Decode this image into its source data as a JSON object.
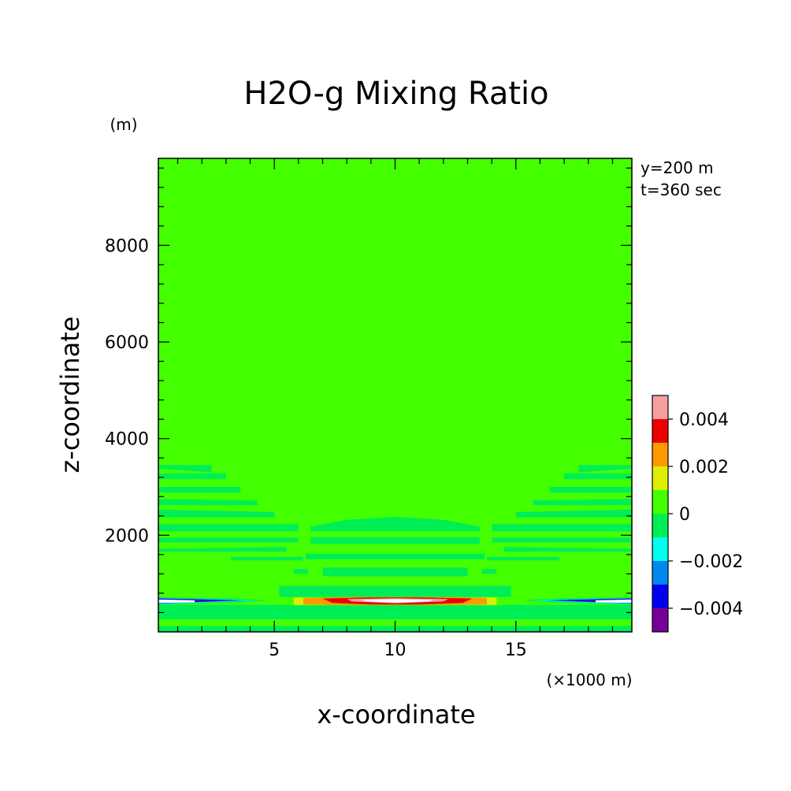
{
  "chart_data": {
    "type": "heatmap",
    "title": "H2O-g Mixing Ratio",
    "xlabel": "x-coordinate",
    "ylabel": "z-coordinate",
    "x_unit": "(×1000 m)",
    "y_unit": "(m)",
    "annotations": [
      "y=200 m",
      "t=360 sec"
    ],
    "xlim": [
      0.2,
      19.8
    ],
    "ylim": [
      0,
      9800
    ],
    "x_ticks": [
      5,
      10,
      15
    ],
    "x_tick_labels": [
      "5",
      "10",
      "15"
    ],
    "y_ticks": [
      2000,
      4000,
      6000,
      8000
    ],
    "y_tick_labels": [
      "2000",
      "4000",
      "6000",
      "8000"
    ],
    "background_level": 0,
    "colorbar": {
      "levels": [
        {
          "lower": 0.004,
          "color": "#f4a0a0"
        },
        {
          "lower": 0.003,
          "color": "#ee0000"
        },
        {
          "lower": 0.002,
          "color": "#ff9900"
        },
        {
          "lower": 0.001,
          "color": "#ddee00"
        },
        {
          "lower": 0.0,
          "color": "#44ff00"
        },
        {
          "lower": -0.001,
          "color": "#00ee55"
        },
        {
          "lower": -0.002,
          "color": "#00ffee"
        },
        {
          "lower": -0.003,
          "color": "#0088ee"
        },
        {
          "lower": -0.004,
          "color": "#0000ee"
        },
        {
          "lower": -0.005,
          "color": "#770099"
        }
      ],
      "labels": [
        {
          "value": 0.004,
          "text": "0.004"
        },
        {
          "value": 0.002,
          "text": "0.002"
        },
        {
          "value": 0,
          "text": "0"
        },
        {
          "value": -0.002,
          "text": "−0.002"
        },
        {
          "value": -0.004,
          "text": "−0.004"
        }
      ]
    },
    "regions": [
      {
        "level": -0.001,
        "desc": "left stripe 1",
        "points": [
          [
            0.2,
            3450
          ],
          [
            0.2,
            3380
          ],
          [
            2.4,
            3300
          ],
          [
            2.4,
            3450
          ]
        ]
      },
      {
        "level": -0.001,
        "desc": "left band 1",
        "points": [
          [
            0.2,
            3280
          ],
          [
            3.0,
            3280
          ],
          [
            3.0,
            3160
          ],
          [
            0.2,
            3160
          ]
        ]
      },
      {
        "level": -0.001,
        "desc": "left band 2",
        "points": [
          [
            0.2,
            3000
          ],
          [
            3.6,
            3000
          ],
          [
            3.6,
            2880
          ],
          [
            0.2,
            2880
          ]
        ]
      },
      {
        "level": -0.001,
        "desc": "left band 3",
        "points": [
          [
            0.2,
            2750
          ],
          [
            4.3,
            2720
          ],
          [
            4.3,
            2620
          ],
          [
            0.2,
            2620
          ]
        ]
      },
      {
        "level": -0.001,
        "desc": "left band 4",
        "points": [
          [
            0.2,
            2530
          ],
          [
            5.0,
            2480
          ],
          [
            5.0,
            2370
          ],
          [
            0.2,
            2370
          ]
        ]
      },
      {
        "level": -0.001,
        "desc": "left band 5",
        "points": [
          [
            0.2,
            2230
          ],
          [
            6.0,
            2230
          ],
          [
            6.0,
            2080
          ],
          [
            0.2,
            2080
          ]
        ]
      },
      {
        "level": -0.001,
        "desc": "left band 6",
        "points": [
          [
            0.2,
            1950
          ],
          [
            6.0,
            1950
          ],
          [
            6.0,
            1850
          ],
          [
            0.2,
            1850
          ]
        ]
      },
      {
        "level": -0.001,
        "desc": "left band 7",
        "points": [
          [
            0.2,
            1720
          ],
          [
            5.5,
            1760
          ],
          [
            5.5,
            1660
          ],
          [
            0.2,
            1660
          ]
        ]
      },
      {
        "level": -0.001,
        "desc": "left band 8",
        "points": [
          [
            3.2,
            1550
          ],
          [
            6.2,
            1550
          ],
          [
            6.2,
            1480
          ],
          [
            3.2,
            1480
          ]
        ]
      },
      {
        "level": -0.001,
        "desc": "left wedge",
        "points": [
          [
            5.8,
            1300
          ],
          [
            6.4,
            1300
          ],
          [
            6.4,
            1200
          ],
          [
            5.8,
            1200
          ]
        ]
      },
      {
        "level": -0.001,
        "desc": "right stripe 1",
        "points": [
          [
            17.6,
            3300
          ],
          [
            19.8,
            3380
          ],
          [
            19.8,
            3450
          ],
          [
            17.6,
            3450
          ]
        ]
      },
      {
        "level": -0.001,
        "desc": "right band 1",
        "points": [
          [
            17.0,
            3280
          ],
          [
            19.8,
            3280
          ],
          [
            19.8,
            3160
          ],
          [
            17.0,
            3160
          ]
        ]
      },
      {
        "level": -0.001,
        "desc": "right band 2",
        "points": [
          [
            16.4,
            3000
          ],
          [
            19.8,
            3000
          ],
          [
            19.8,
            2880
          ],
          [
            16.4,
            2880
          ]
        ]
      },
      {
        "level": -0.001,
        "desc": "right band 3",
        "points": [
          [
            15.7,
            2720
          ],
          [
            19.8,
            2750
          ],
          [
            19.8,
            2620
          ],
          [
            15.7,
            2620
          ]
        ]
      },
      {
        "level": -0.001,
        "desc": "right band 4",
        "points": [
          [
            15.0,
            2480
          ],
          [
            19.8,
            2530
          ],
          [
            19.8,
            2370
          ],
          [
            15.0,
            2370
          ]
        ]
      },
      {
        "level": -0.001,
        "desc": "right band 5",
        "points": [
          [
            14.0,
            2230
          ],
          [
            19.8,
            2230
          ],
          [
            19.8,
            2080
          ],
          [
            14.0,
            2080
          ]
        ]
      },
      {
        "level": -0.001,
        "desc": "right band 6",
        "points": [
          [
            14.0,
            1950
          ],
          [
            19.8,
            1950
          ],
          [
            19.8,
            1850
          ],
          [
            14.0,
            1850
          ]
        ]
      },
      {
        "level": -0.001,
        "desc": "right band 7",
        "points": [
          [
            14.5,
            1760
          ],
          [
            19.8,
            1720
          ],
          [
            19.8,
            1660
          ],
          [
            14.5,
            1660
          ]
        ]
      },
      {
        "level": -0.001,
        "desc": "right band 8",
        "points": [
          [
            13.8,
            1550
          ],
          [
            16.8,
            1550
          ],
          [
            16.8,
            1480
          ],
          [
            13.8,
            1480
          ]
        ]
      },
      {
        "level": -0.001,
        "desc": "right wedge",
        "points": [
          [
            13.6,
            1300
          ],
          [
            14.2,
            1300
          ],
          [
            14.2,
            1200
          ],
          [
            13.6,
            1200
          ]
        ]
      },
      {
        "level": -0.001,
        "desc": "center band 1",
        "points": [
          [
            6.5,
            2180
          ],
          [
            8.0,
            2320
          ],
          [
            10.0,
            2380
          ],
          [
            12.0,
            2320
          ],
          [
            13.5,
            2180
          ],
          [
            13.5,
            2080
          ],
          [
            6.5,
            2080
          ]
        ]
      },
      {
        "level": -0.001,
        "desc": "center band 2",
        "points": [
          [
            6.5,
            1960
          ],
          [
            13.5,
            1960
          ],
          [
            13.5,
            1820
          ],
          [
            6.5,
            1820
          ]
        ]
      },
      {
        "level": -0.001,
        "desc": "center band 3",
        "points": [
          [
            6.3,
            1620
          ],
          [
            13.7,
            1620
          ],
          [
            13.7,
            1500
          ],
          [
            6.3,
            1500
          ]
        ]
      },
      {
        "level": -0.001,
        "desc": "center band 4",
        "points": [
          [
            7.0,
            1330
          ],
          [
            13.0,
            1330
          ],
          [
            13.0,
            1150
          ],
          [
            7.0,
            1150
          ]
        ]
      },
      {
        "level": -0.001,
        "desc": "center band 5",
        "points": [
          [
            5.2,
            950
          ],
          [
            14.8,
            950
          ],
          [
            14.8,
            720
          ],
          [
            5.2,
            720
          ]
        ]
      },
      {
        "level": -0.001,
        "desc": "bottom band",
        "points": [
          [
            0.2,
            560
          ],
          [
            19.8,
            560
          ],
          [
            19.8,
            0
          ],
          [
            0.2,
            0
          ]
        ]
      },
      {
        "level": 0.0,
        "desc": "bottom gap",
        "points": [
          [
            0.2,
            260
          ],
          [
            19.8,
            260
          ],
          [
            19.8,
            120
          ],
          [
            0.2,
            120
          ]
        ]
      },
      {
        "level": -0.001,
        "desc": "left low lobe",
        "points": [
          [
            0.2,
            720
          ],
          [
            3.5,
            690
          ],
          [
            4.8,
            650
          ],
          [
            3.5,
            610
          ],
          [
            0.2,
            560
          ]
        ]
      },
      {
        "level": -0.001,
        "desc": "right low lobe",
        "points": [
          [
            19.8,
            720
          ],
          [
            16.5,
            690
          ],
          [
            15.2,
            650
          ],
          [
            16.5,
            610
          ],
          [
            19.8,
            560
          ]
        ]
      },
      {
        "level": -0.002,
        "desc": "left cyan",
        "points": [
          [
            0.2,
            700
          ],
          [
            3.0,
            670
          ],
          [
            4.3,
            650
          ],
          [
            3.0,
            625
          ],
          [
            0.2,
            575
          ]
        ]
      },
      {
        "level": -0.002,
        "desc": "right cyan",
        "points": [
          [
            19.8,
            700
          ],
          [
            17.0,
            670
          ],
          [
            15.7,
            650
          ],
          [
            17.0,
            625
          ],
          [
            19.8,
            575
          ]
        ]
      },
      {
        "level": -0.003,
        "desc": "left light blue",
        "points": [
          [
            0.2,
            695
          ],
          [
            2.8,
            665
          ],
          [
            3.8,
            650
          ],
          [
            2.8,
            630
          ],
          [
            0.2,
            585
          ]
        ]
      },
      {
        "level": -0.003,
        "desc": "right light blue",
        "points": [
          [
            19.8,
            695
          ],
          [
            17.2,
            665
          ],
          [
            16.2,
            650
          ],
          [
            17.2,
            630
          ],
          [
            19.8,
            585
          ]
        ]
      },
      {
        "level": -0.004,
        "desc": "left blue",
        "points": [
          [
            0.2,
            690
          ],
          [
            2.5,
            663
          ],
          [
            3.6,
            650
          ],
          [
            2.5,
            635
          ],
          [
            0.2,
            590
          ]
        ]
      },
      {
        "level": -0.004,
        "desc": "right blue",
        "points": [
          [
            19.8,
            690
          ],
          [
            17.5,
            663
          ],
          [
            16.4,
            650
          ],
          [
            17.5,
            635
          ],
          [
            19.8,
            590
          ]
        ]
      },
      {
        "level": -0.005,
        "desc": "left purple",
        "points": [
          [
            0.2,
            672
          ],
          [
            2.3,
            655
          ],
          [
            3.3,
            650
          ],
          [
            2.3,
            645
          ],
          [
            0.2,
            610
          ]
        ]
      },
      {
        "level": -0.005,
        "desc": "right purple",
        "points": [
          [
            19.8,
            672
          ],
          [
            17.7,
            655
          ],
          [
            16.7,
            650
          ],
          [
            17.7,
            645
          ],
          [
            19.8,
            610
          ]
        ]
      },
      {
        "level": 0.0,
        "desc": "center green band",
        "points": [
          [
            5.6,
            720
          ],
          [
            14.4,
            720
          ],
          [
            14.4,
            550
          ],
          [
            5.6,
            550
          ]
        ]
      },
      {
        "level": 0.001,
        "desc": "center yellow",
        "points": [
          [
            5.8,
            710
          ],
          [
            14.2,
            710
          ],
          [
            14.2,
            560
          ],
          [
            5.8,
            560
          ]
        ]
      },
      {
        "level": 0.002,
        "desc": "center orange",
        "points": [
          [
            6.2,
            700
          ],
          [
            8.0,
            720
          ],
          [
            12.0,
            720
          ],
          [
            13.8,
            700
          ],
          [
            13.8,
            570
          ],
          [
            12.0,
            560
          ],
          [
            8.0,
            560
          ],
          [
            6.2,
            570
          ]
        ]
      },
      {
        "level": 0.003,
        "desc": "center red",
        "points": [
          [
            7.0,
            690
          ],
          [
            9.0,
            715
          ],
          [
            11.0,
            715
          ],
          [
            13.2,
            690
          ],
          [
            12.8,
            600
          ],
          [
            11.0,
            565
          ],
          [
            9.0,
            565
          ],
          [
            7.4,
            600
          ]
        ]
      },
      {
        "level": 0.004,
        "desc": "center pink",
        "points": [
          [
            8.0,
            680
          ],
          [
            10.0,
            695
          ],
          [
            12.2,
            680
          ],
          [
            12.0,
            630
          ],
          [
            10.0,
            590
          ],
          [
            8.2,
            630
          ]
        ]
      }
    ],
    "white_regions": [
      {
        "desc": "left white patch",
        "points": [
          [
            0.2,
            600
          ],
          [
            0.2,
            670
          ],
          [
            1.7,
            652
          ],
          [
            1.7,
            612
          ]
        ]
      },
      {
        "desc": "right white patch",
        "points": [
          [
            19.8,
            600
          ],
          [
            19.8,
            670
          ],
          [
            18.3,
            652
          ],
          [
            18.3,
            612
          ]
        ]
      },
      {
        "desc": "center white core",
        "points": [
          [
            8.6,
            665
          ],
          [
            10.0,
            680
          ],
          [
            11.6,
            665
          ],
          [
            11.4,
            632
          ],
          [
            10.0,
            605
          ],
          [
            8.8,
            632
          ]
        ]
      }
    ]
  }
}
